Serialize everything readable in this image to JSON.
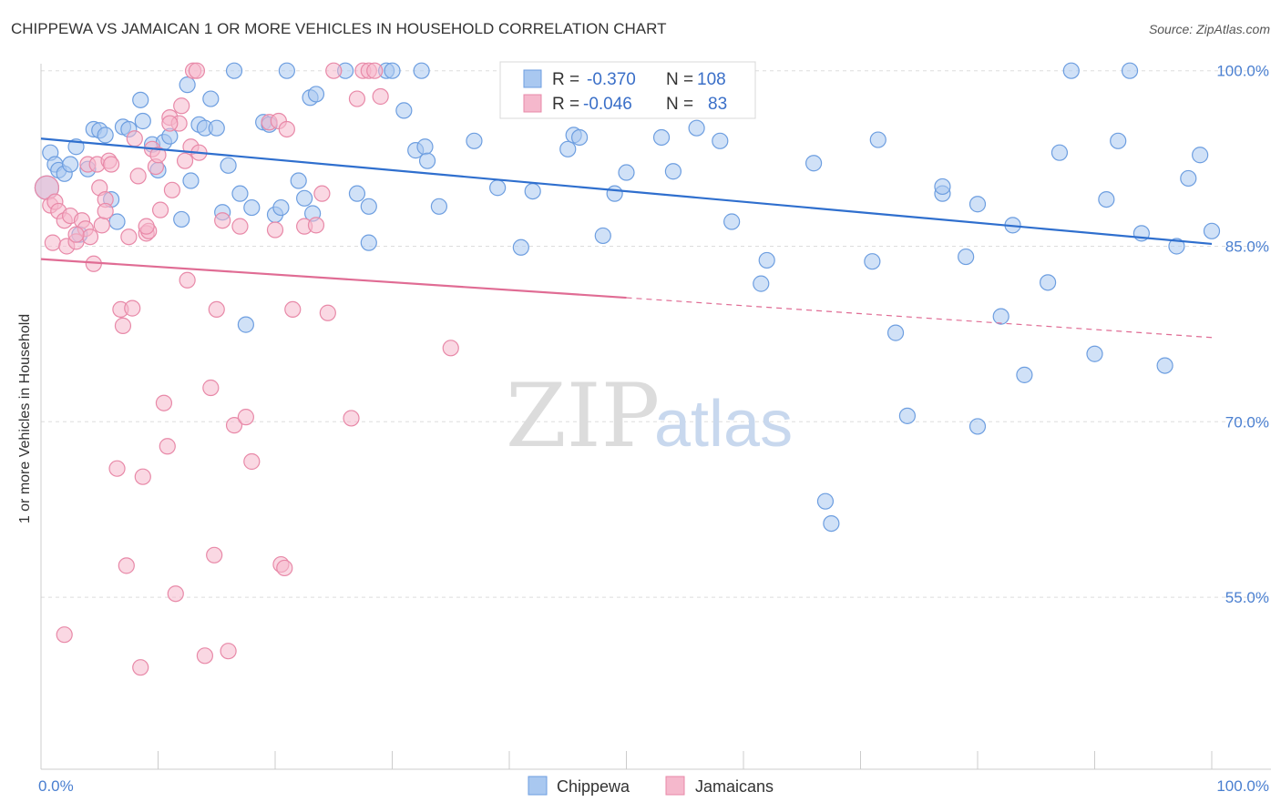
{
  "title": "CHIPPEWA VS JAMAICAN 1 OR MORE VEHICLES IN HOUSEHOLD CORRELATION CHART",
  "source": "Source: ZipAtlas.com",
  "watermark": {
    "zip": "ZIP",
    "atlas": "atlas"
  },
  "colors": {
    "blue_fill": "#a9c8f0",
    "blue_stroke": "#6d9ee0",
    "blue_line": "#2f6fce",
    "pink_fill": "#f5b8cc",
    "pink_stroke": "#e889a8",
    "pink_line": "#e06c94",
    "tick_text": "#4a7fd0",
    "grid": "#dddddd"
  },
  "legend": {
    "rows": [
      {
        "r_label": "R =",
        "r_value": "-0.370",
        "n_label": "N =",
        "n_value": "108"
      },
      {
        "r_label": "R =",
        "r_value": "-0.046",
        "n_label": "N =",
        "n_value": "83"
      }
    ]
  },
  "chart_data": {
    "type": "scatter",
    "title": "CHIPPEWA VS JAMAICAN 1 OR MORE VEHICLES IN HOUSEHOLD CORRELATION CHART",
    "xlabel": "",
    "ylabel": "1 or more Vehicles in Household",
    "xlim": [
      0,
      100
    ],
    "ylim": [
      40.3,
      100.6
    ],
    "x_tick_labels": [
      "0.0%",
      "100.0%"
    ],
    "y_tick_labels": [
      "100.0%",
      "85.0%",
      "70.0%",
      "55.0%"
    ],
    "y_ticks": [
      100,
      85,
      70,
      55
    ],
    "grid": true,
    "legend_position": "bottom",
    "series": [
      {
        "name": "Chippewa",
        "color": "#a9c8f0",
        "trend": {
          "x": [
            0,
            100
          ],
          "y": [
            94.2,
            85.2
          ],
          "dashed_from": null
        },
        "points": [
          [
            0.5,
            90.0
          ],
          [
            0.8,
            93.0
          ],
          [
            1.2,
            92.0
          ],
          [
            1.5,
            91.5
          ],
          [
            2.0,
            91.2
          ],
          [
            2.5,
            92.0
          ],
          [
            3.0,
            93.5
          ],
          [
            3.3,
            86.0
          ],
          [
            4.0,
            91.6
          ],
          [
            4.5,
            95.0
          ],
          [
            5.0,
            94.9
          ],
          [
            5.5,
            94.5
          ],
          [
            6.0,
            89.0
          ],
          [
            6.5,
            87.1
          ],
          [
            7.0,
            95.2
          ],
          [
            7.5,
            95.0
          ],
          [
            8.5,
            97.5
          ],
          [
            8.7,
            95.7
          ],
          [
            9.5,
            93.7
          ],
          [
            10.0,
            91.5
          ],
          [
            10.5,
            93.9
          ],
          [
            11.0,
            94.4
          ],
          [
            12.0,
            87.3
          ],
          [
            12.5,
            98.8
          ],
          [
            12.8,
            90.6
          ],
          [
            13.5,
            95.4
          ],
          [
            14.0,
            95.1
          ],
          [
            14.5,
            97.6
          ],
          [
            15.0,
            95.1
          ],
          [
            15.5,
            87.9
          ],
          [
            16.0,
            91.9
          ],
          [
            16.5,
            100.0
          ],
          [
            17.0,
            89.5
          ],
          [
            17.5,
            78.3
          ],
          [
            18.0,
            88.3
          ],
          [
            19.0,
            95.6
          ],
          [
            19.5,
            95.4
          ],
          [
            20.0,
            87.7
          ],
          [
            20.5,
            88.3
          ],
          [
            21.0,
            100.0
          ],
          [
            22.0,
            90.6
          ],
          [
            22.5,
            89.1
          ],
          [
            23.0,
            97.7
          ],
          [
            23.5,
            98.0
          ],
          [
            23.2,
            87.8
          ],
          [
            26.0,
            100.0
          ],
          [
            27.0,
            89.5
          ],
          [
            28.0,
            88.4
          ],
          [
            28.0,
            85.3
          ],
          [
            29.5,
            100.0
          ],
          [
            30.0,
            100.0
          ],
          [
            31.0,
            96.6
          ],
          [
            32.0,
            93.2
          ],
          [
            32.5,
            100.0
          ],
          [
            32.8,
            93.5
          ],
          [
            33.0,
            92.3
          ],
          [
            34.0,
            88.4
          ],
          [
            37.0,
            94.0
          ],
          [
            39.0,
            90.0
          ],
          [
            41.0,
            84.9
          ],
          [
            42.0,
            89.7
          ],
          [
            45.0,
            93.3
          ],
          [
            45.5,
            94.5
          ],
          [
            46.0,
            94.3
          ],
          [
            47.0,
            100.0
          ],
          [
            48.0,
            85.9
          ],
          [
            49.0,
            89.5
          ],
          [
            50.0,
            91.3
          ],
          [
            53.0,
            94.3
          ],
          [
            54.0,
            100.0
          ],
          [
            54.0,
            91.4
          ],
          [
            56.0,
            95.1
          ],
          [
            58.0,
            94.0
          ],
          [
            59.0,
            87.1
          ],
          [
            61.5,
            81.8
          ],
          [
            62.0,
            83.8
          ],
          [
            66.0,
            92.1
          ],
          [
            67.0,
            63.2
          ],
          [
            67.5,
            61.3
          ],
          [
            71.0,
            83.7
          ],
          [
            71.5,
            94.1
          ],
          [
            73.0,
            77.6
          ],
          [
            74.0,
            70.5
          ],
          [
            77.0,
            89.5
          ],
          [
            77.0,
            90.1
          ],
          [
            79.0,
            84.1
          ],
          [
            80.0,
            69.6
          ],
          [
            80.0,
            88.6
          ],
          [
            82.0,
            79.0
          ],
          [
            83.0,
            86.8
          ],
          [
            84.0,
            74.0
          ],
          [
            86.0,
            81.9
          ],
          [
            87.0,
            93.0
          ],
          [
            88.0,
            100.0
          ],
          [
            90.0,
            75.8
          ],
          [
            91.0,
            89.0
          ],
          [
            92.0,
            94.0
          ],
          [
            93.0,
            100.0
          ],
          [
            94.0,
            86.1
          ],
          [
            96.0,
            74.8
          ],
          [
            97.0,
            85.0
          ],
          [
            98.0,
            90.8
          ],
          [
            99.0,
            92.8
          ],
          [
            100.0,
            86.3
          ]
        ]
      },
      {
        "name": "Jamaicans",
        "color": "#f5b8cc",
        "trend": {
          "x": [
            0,
            50,
            100
          ],
          "y": [
            83.9,
            80.6,
            77.2
          ],
          "dashed_from": 50
        },
        "points": [
          [
            0.5,
            90.0
          ],
          [
            0.8,
            88.5
          ],
          [
            1.0,
            85.3
          ],
          [
            1.2,
            88.8
          ],
          [
            1.5,
            88.0
          ],
          [
            2.0,
            87.2
          ],
          [
            2.2,
            85.0
          ],
          [
            2.5,
            87.6
          ],
          [
            3.0,
            85.4
          ],
          [
            3.5,
            87.2
          ],
          [
            3.8,
            86.5
          ],
          [
            4.0,
            92.0
          ],
          [
            4.2,
            85.8
          ],
          [
            4.5,
            83.5
          ],
          [
            4.8,
            92.0
          ],
          [
            5.0,
            90.0
          ],
          [
            5.2,
            86.8
          ],
          [
            5.5,
            89.0
          ],
          [
            5.8,
            92.3
          ],
          [
            6.0,
            92.0
          ],
          [
            6.5,
            66.0
          ],
          [
            6.8,
            79.6
          ],
          [
            7.0,
            78.2
          ],
          [
            7.3,
            57.7
          ],
          [
            7.5,
            85.8
          ],
          [
            7.8,
            79.7
          ],
          [
            8.0,
            94.2
          ],
          [
            8.3,
            91.0
          ],
          [
            8.5,
            49.0
          ],
          [
            8.7,
            65.3
          ],
          [
            9.0,
            86.1
          ],
          [
            9.2,
            86.3
          ],
          [
            9.5,
            93.3
          ],
          [
            9.8,
            91.8
          ],
          [
            10.0,
            92.8
          ],
          [
            10.2,
            88.1
          ],
          [
            10.5,
            71.6
          ],
          [
            10.8,
            67.9
          ],
          [
            11.0,
            96.0
          ],
          [
            11.2,
            89.8
          ],
          [
            11.5,
            55.3
          ],
          [
            11.8,
            95.5
          ],
          [
            12.0,
            97.0
          ],
          [
            12.3,
            92.3
          ],
          [
            12.5,
            82.1
          ],
          [
            12.8,
            93.5
          ],
          [
            13.0,
            100.0
          ],
          [
            13.3,
            100.0
          ],
          [
            14.0,
            50.0
          ],
          [
            14.5,
            72.9
          ],
          [
            14.8,
            58.6
          ],
          [
            15.0,
            79.6
          ],
          [
            15.5,
            87.2
          ],
          [
            16.0,
            50.4
          ],
          [
            16.5,
            69.7
          ],
          [
            17.0,
            86.7
          ],
          [
            17.5,
            70.4
          ],
          [
            18.0,
            66.6
          ],
          [
            19.5,
            95.6
          ],
          [
            20.0,
            86.4
          ],
          [
            20.3,
            95.7
          ],
          [
            20.5,
            57.8
          ],
          [
            20.8,
            57.5
          ],
          [
            21.0,
            95.0
          ],
          [
            21.5,
            79.6
          ],
          [
            22.5,
            86.7
          ],
          [
            23.5,
            86.8
          ],
          [
            24.0,
            89.5
          ],
          [
            24.5,
            79.3
          ],
          [
            25.0,
            100.0
          ],
          [
            26.5,
            70.3
          ],
          [
            27.0,
            97.6
          ],
          [
            27.5,
            100.0
          ],
          [
            28.0,
            100.0
          ],
          [
            28.5,
            100.0
          ],
          [
            29.0,
            97.8
          ],
          [
            35.0,
            76.3
          ],
          [
            2.0,
            51.8
          ],
          [
            3.0,
            86.0
          ],
          [
            5.5,
            88.0
          ],
          [
            9.0,
            86.7
          ],
          [
            11.0,
            95.5
          ],
          [
            13.5,
            93.0
          ]
        ]
      }
    ]
  },
  "bottom_legend": {
    "items": [
      "Chippewa",
      "Jamaicans"
    ]
  }
}
